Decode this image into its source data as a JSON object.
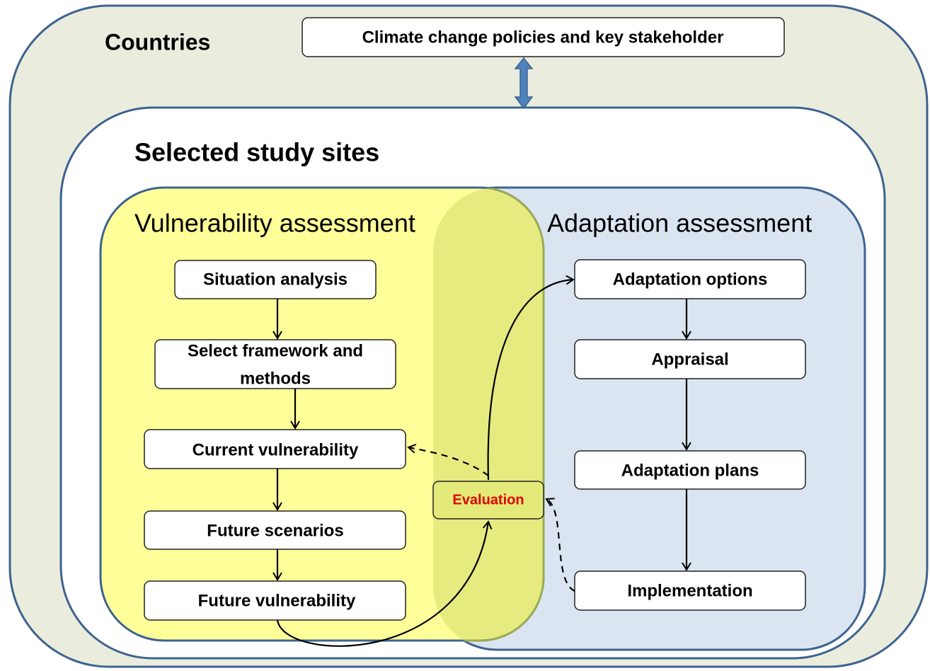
{
  "diagram": {
    "countries_label": "Countries",
    "policy_box": "Climate change policies and key stakeholder",
    "sites_label": "Selected study sites",
    "vulnerability": {
      "title": "Vulnerability assessment",
      "steps": [
        "Situation  analysis",
        "Select framework and",
        "methods",
        "Current vulnerability",
        "Future scenarios",
        "Future vulnerability"
      ]
    },
    "evaluation": "Evaluation",
    "adaptation": {
      "title": "Adaptation assessment",
      "steps": [
        "Adaptation options",
        "Appraisal",
        "Adaptation plans",
        "Implementation"
      ]
    }
  }
}
